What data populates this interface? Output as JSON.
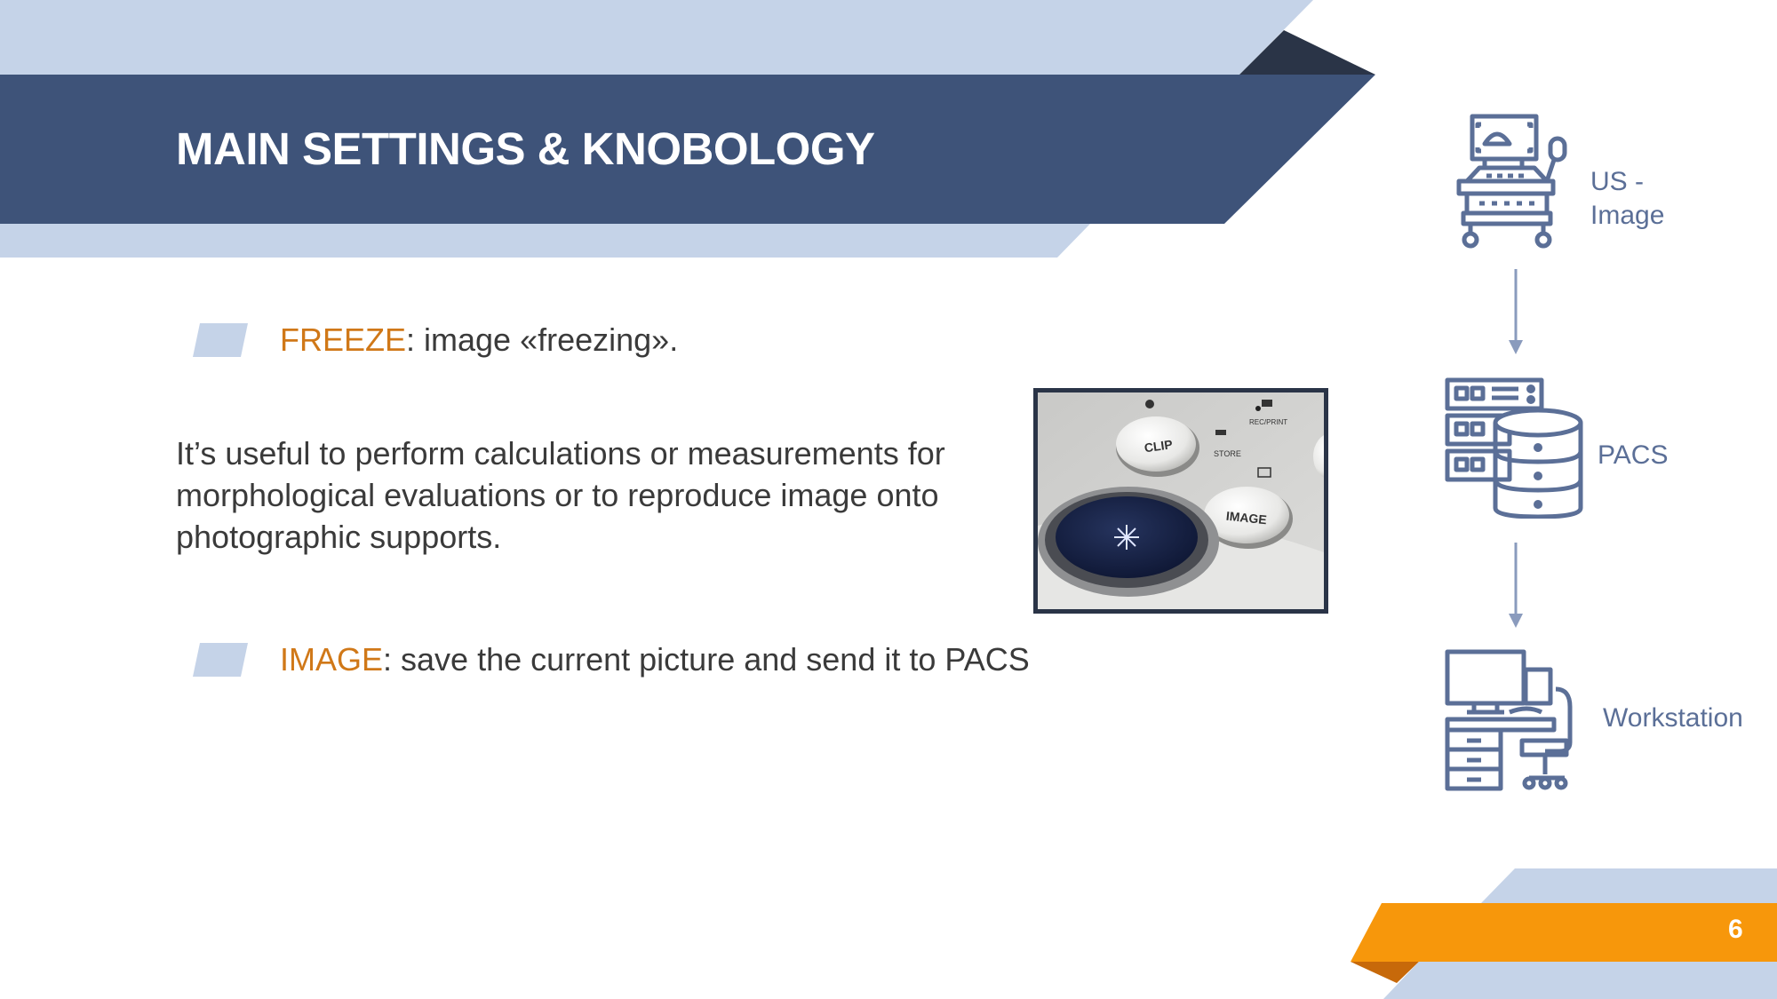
{
  "slide": {
    "title": "MAIN SETTINGS & KNOBOLOGY",
    "page_number": "6"
  },
  "bullets": [
    {
      "keyword": "FREEZE",
      "text": ": image «freezing»."
    },
    {
      "keyword": "IMAGE",
      "text": ": save the current picture and send it to PACS"
    }
  ],
  "paragraph": "It’s useful to perform calculations or measurements for morphological evaluations or to reproduce image onto photographic supports.",
  "photo": {
    "labels": {
      "clip": "CLIP",
      "store": "STORE",
      "rec_print": "REC/PRINT",
      "image": "IMAGE"
    }
  },
  "flow": {
    "step1_line1": "US -",
    "step1_line2": "Image",
    "step2": "PACS",
    "step3": "Workstation"
  },
  "colors": {
    "header_dark": "#3e5379",
    "header_light": "#c5d3e8",
    "accent_orange": "#f7970b",
    "keyword_orange": "#d07818",
    "icon_blue": "#5b6f97"
  }
}
